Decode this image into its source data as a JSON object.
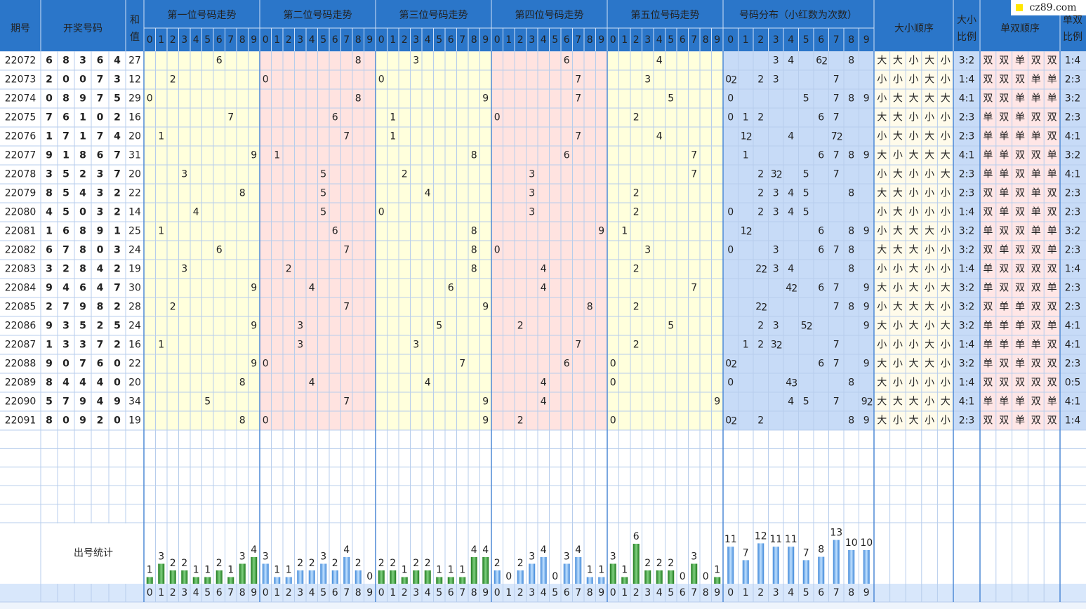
{
  "header": {
    "issue": "期号",
    "numbers": "开奖号码",
    "sum": [
      "和",
      "值"
    ],
    "positions": [
      "第一位号码走势",
      "第二位号码走势",
      "第三位号码走势",
      "第四位号码走势",
      "第五位号码走势"
    ],
    "distribution": "号码分布（小红数为次数）",
    "size_order": "大小顺序",
    "size_ratio": [
      "大小",
      "比例"
    ],
    "parity_order": "单双顺序",
    "parity_ratio": [
      "单双",
      "比例"
    ]
  },
  "digits": [
    0,
    1,
    2,
    3,
    4,
    5,
    6,
    7,
    8,
    9
  ],
  "rows": [
    {
      "issue": 22072,
      "numbers": [
        6,
        8,
        3,
        6,
        4
      ],
      "sum": 27,
      "dist": [
        0,
        0,
        0,
        1,
        1,
        0,
        2,
        0,
        1,
        0
      ],
      "size": [
        "大",
        "大",
        "小",
        "大",
        "小"
      ],
      "size_ratio": "3:2",
      "parity": [
        "双",
        "双",
        "单",
        "双",
        "双"
      ],
      "parity_ratio": "1:4"
    },
    {
      "issue": 22073,
      "numbers": [
        2,
        0,
        0,
        7,
        3
      ],
      "sum": 12,
      "dist": [
        2,
        0,
        1,
        1,
        0,
        0,
        0,
        1,
        0,
        0
      ],
      "size": [
        "小",
        "小",
        "小",
        "大",
        "小"
      ],
      "size_ratio": "1:4",
      "parity": [
        "双",
        "双",
        "双",
        "单",
        "单"
      ],
      "parity_ratio": "2:3"
    },
    {
      "issue": 22074,
      "numbers": [
        0,
        8,
        9,
        7,
        5
      ],
      "sum": 29,
      "dist": [
        1,
        0,
        0,
        0,
        0,
        1,
        0,
        1,
        1,
        1
      ],
      "size": [
        "小",
        "大",
        "大",
        "大",
        "大"
      ],
      "size_ratio": "4:1",
      "parity": [
        "双",
        "双",
        "单",
        "单",
        "单"
      ],
      "parity_ratio": "3:2"
    },
    {
      "issue": 22075,
      "numbers": [
        7,
        6,
        1,
        0,
        2
      ],
      "sum": 16,
      "dist": [
        1,
        1,
        1,
        0,
        0,
        0,
        1,
        1,
        0,
        0
      ],
      "size": [
        "大",
        "大",
        "小",
        "小",
        "小"
      ],
      "size_ratio": "2:3",
      "parity": [
        "单",
        "双",
        "单",
        "双",
        "双"
      ],
      "parity_ratio": "2:3"
    },
    {
      "issue": 22076,
      "numbers": [
        1,
        7,
        1,
        7,
        4
      ],
      "sum": 20,
      "dist": [
        0,
        2,
        0,
        0,
        1,
        0,
        0,
        2,
        0,
        0
      ],
      "size": [
        "小",
        "大",
        "小",
        "大",
        "小"
      ],
      "size_ratio": "2:3",
      "parity": [
        "单",
        "单",
        "单",
        "单",
        "双"
      ],
      "parity_ratio": "4:1"
    },
    {
      "issue": 22077,
      "numbers": [
        9,
        1,
        8,
        6,
        7
      ],
      "sum": 31,
      "dist": [
        0,
        1,
        0,
        0,
        0,
        0,
        1,
        1,
        1,
        1
      ],
      "size": [
        "大",
        "小",
        "大",
        "大",
        "大"
      ],
      "size_ratio": "4:1",
      "parity": [
        "单",
        "单",
        "双",
        "双",
        "单"
      ],
      "parity_ratio": "3:2"
    },
    {
      "issue": 22078,
      "numbers": [
        3,
        5,
        2,
        3,
        7
      ],
      "sum": 20,
      "dist": [
        0,
        0,
        1,
        2,
        0,
        1,
        0,
        1,
        0,
        0
      ],
      "size": [
        "小",
        "大",
        "小",
        "小",
        "大"
      ],
      "size_ratio": "2:3",
      "parity": [
        "单",
        "单",
        "双",
        "单",
        "单"
      ],
      "parity_ratio": "4:1"
    },
    {
      "issue": 22079,
      "numbers": [
        8,
        5,
        4,
        3,
        2
      ],
      "sum": 22,
      "dist": [
        0,
        0,
        1,
        1,
        1,
        1,
        0,
        0,
        1,
        0
      ],
      "size": [
        "大",
        "大",
        "小",
        "小",
        "小"
      ],
      "size_ratio": "2:3",
      "parity": [
        "双",
        "单",
        "双",
        "单",
        "双"
      ],
      "parity_ratio": "2:3"
    },
    {
      "issue": 22080,
      "numbers": [
        4,
        5,
        0,
        3,
        2
      ],
      "sum": 14,
      "dist": [
        1,
        0,
        1,
        1,
        1,
        1,
        0,
        0,
        0,
        0
      ],
      "size": [
        "小",
        "大",
        "小",
        "小",
        "小"
      ],
      "size_ratio": "1:4",
      "parity": [
        "双",
        "单",
        "双",
        "单",
        "双"
      ],
      "parity_ratio": "2:3"
    },
    {
      "issue": 22081,
      "numbers": [
        1,
        6,
        8,
        9,
        1
      ],
      "sum": 25,
      "dist": [
        0,
        2,
        0,
        0,
        0,
        0,
        1,
        0,
        1,
        1
      ],
      "size": [
        "小",
        "大",
        "大",
        "大",
        "小"
      ],
      "size_ratio": "3:2",
      "parity": [
        "单",
        "双",
        "双",
        "单",
        "单"
      ],
      "parity_ratio": "3:2"
    },
    {
      "issue": 22082,
      "numbers": [
        6,
        7,
        8,
        0,
        3
      ],
      "sum": 24,
      "dist": [
        1,
        0,
        0,
        1,
        0,
        0,
        1,
        1,
        1,
        0
      ],
      "size": [
        "大",
        "大",
        "大",
        "小",
        "小"
      ],
      "size_ratio": "3:2",
      "parity": [
        "双",
        "单",
        "双",
        "双",
        "单"
      ],
      "parity_ratio": "2:3"
    },
    {
      "issue": 22083,
      "numbers": [
        3,
        2,
        8,
        4,
        2
      ],
      "sum": 19,
      "dist": [
        0,
        0,
        2,
        1,
        1,
        0,
        0,
        0,
        1,
        0
      ],
      "size": [
        "小",
        "小",
        "大",
        "小",
        "小"
      ],
      "size_ratio": "1:4",
      "parity": [
        "单",
        "双",
        "双",
        "双",
        "双"
      ],
      "parity_ratio": "1:4"
    },
    {
      "issue": 22084,
      "numbers": [
        9,
        4,
        6,
        4,
        7
      ],
      "sum": 30,
      "dist": [
        0,
        0,
        0,
        0,
        2,
        0,
        1,
        1,
        0,
        1
      ],
      "size": [
        "大",
        "小",
        "大",
        "小",
        "大"
      ],
      "size_ratio": "3:2",
      "parity": [
        "单",
        "双",
        "双",
        "双",
        "单"
      ],
      "parity_ratio": "2:3"
    },
    {
      "issue": 22085,
      "numbers": [
        2,
        7,
        9,
        8,
        2
      ],
      "sum": 28,
      "dist": [
        0,
        0,
        2,
        0,
        0,
        0,
        0,
        1,
        1,
        1
      ],
      "size": [
        "小",
        "大",
        "大",
        "大",
        "小"
      ],
      "size_ratio": "3:2",
      "parity": [
        "双",
        "单",
        "单",
        "双",
        "双"
      ],
      "parity_ratio": "2:3"
    },
    {
      "issue": 22086,
      "numbers": [
        9,
        3,
        5,
        2,
        5
      ],
      "sum": 24,
      "dist": [
        0,
        0,
        1,
        1,
        0,
        2,
        0,
        0,
        0,
        1
      ],
      "size": [
        "大",
        "小",
        "大",
        "小",
        "大"
      ],
      "size_ratio": "3:2",
      "parity": [
        "单",
        "单",
        "单",
        "双",
        "单"
      ],
      "parity_ratio": "4:1"
    },
    {
      "issue": 22087,
      "numbers": [
        1,
        3,
        3,
        7,
        2
      ],
      "sum": 16,
      "dist": [
        0,
        1,
        1,
        2,
        0,
        0,
        0,
        1,
        0,
        0
      ],
      "size": [
        "小",
        "小",
        "小",
        "大",
        "小"
      ],
      "size_ratio": "1:4",
      "parity": [
        "单",
        "单",
        "单",
        "单",
        "双"
      ],
      "parity_ratio": "4:1"
    },
    {
      "issue": 22088,
      "numbers": [
        9,
        0,
        7,
        6,
        0
      ],
      "sum": 22,
      "dist": [
        2,
        0,
        0,
        0,
        0,
        0,
        1,
        1,
        0,
        1
      ],
      "size": [
        "大",
        "小",
        "大",
        "大",
        "小"
      ],
      "size_ratio": "3:2",
      "parity": [
        "单",
        "双",
        "单",
        "双",
        "双"
      ],
      "parity_ratio": "2:3"
    },
    {
      "issue": 22089,
      "numbers": [
        8,
        4,
        4,
        4,
        0
      ],
      "sum": 20,
      "dist": [
        1,
        0,
        0,
        0,
        3,
        0,
        0,
        0,
        1,
        0
      ],
      "size": [
        "大",
        "小",
        "小",
        "小",
        "小"
      ],
      "size_ratio": "1:4",
      "parity": [
        "双",
        "双",
        "双",
        "双",
        "双"
      ],
      "parity_ratio": "0:5"
    },
    {
      "issue": 22090,
      "numbers": [
        5,
        7,
        9,
        4,
        9
      ],
      "sum": 34,
      "dist": [
        0,
        0,
        0,
        0,
        1,
        1,
        0,
        1,
        0,
        2
      ],
      "size": [
        "大",
        "大",
        "大",
        "小",
        "大"
      ],
      "size_ratio": "4:1",
      "parity": [
        "单",
        "单",
        "单",
        "双",
        "单"
      ],
      "parity_ratio": "4:1"
    },
    {
      "issue": 22091,
      "numbers": [
        8,
        0,
        9,
        2,
        0
      ],
      "sum": 19,
      "dist": [
        2,
        0,
        1,
        0,
        0,
        0,
        0,
        0,
        1,
        1
      ],
      "size": [
        "大",
        "小",
        "大",
        "小",
        "小"
      ],
      "size_ratio": "2:3",
      "parity": [
        "双",
        "双",
        "单",
        "双",
        "双"
      ],
      "parity_ratio": "1:4"
    }
  ],
  "stats": {
    "label": "出号统计",
    "positions": [
      [
        1,
        3,
        2,
        2,
        1,
        1,
        2,
        1,
        3,
        4
      ],
      [
        3,
        1,
        1,
        2,
        2,
        3,
        2,
        4,
        2,
        0
      ],
      [
        2,
        2,
        1,
        2,
        2,
        1,
        1,
        1,
        4,
        4
      ],
      [
        2,
        0,
        2,
        3,
        4,
        0,
        3,
        4,
        1,
        1
      ],
      [
        3,
        1,
        6,
        2,
        2,
        2,
        0,
        3,
        0,
        1
      ]
    ],
    "distribution": [
      11,
      7,
      12,
      11,
      11,
      7,
      8,
      13,
      10,
      10
    ]
  },
  "logo": "cz89.com"
}
